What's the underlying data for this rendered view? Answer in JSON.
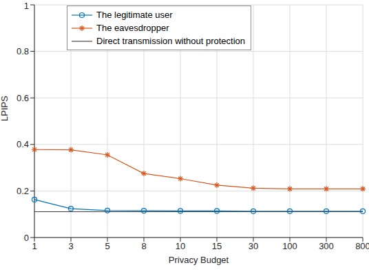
{
  "chart_data": {
    "type": "line",
    "x_label": "Privacy Budget",
    "y_label": "LPIPS",
    "categories": [
      "1",
      "3",
      "5",
      "8",
      "10",
      "15",
      "30",
      "100",
      "300",
      "800"
    ],
    "ylim": [
      0,
      1
    ],
    "yticks": [
      0,
      0.2,
      0.4,
      0.6,
      0.8,
      1
    ],
    "grid": true,
    "legend": "upper center",
    "series": [
      {
        "name": "The legitimate user",
        "color": "#0072bd",
        "marker": "circle",
        "line_style": "solid",
        "values": [
          0.163,
          0.124,
          0.116,
          0.115,
          0.114,
          0.114,
          0.113,
          0.113,
          0.113,
          0.113
        ]
      },
      {
        "name": "The eavesdropper",
        "color": "#d95319",
        "marker": "asterisk",
        "line_style": "solid",
        "values": [
          0.378,
          0.377,
          0.355,
          0.275,
          0.253,
          0.225,
          0.212,
          0.209,
          0.209,
          0.209
        ]
      },
      {
        "name": "Direct transmission without protection",
        "color": "#404040",
        "marker": "none",
        "line_style": "solid",
        "values": [
          0.111,
          0.111,
          0.111,
          0.111,
          0.111,
          0.111,
          0.111,
          0.111,
          0.111,
          0.111
        ]
      }
    ]
  }
}
